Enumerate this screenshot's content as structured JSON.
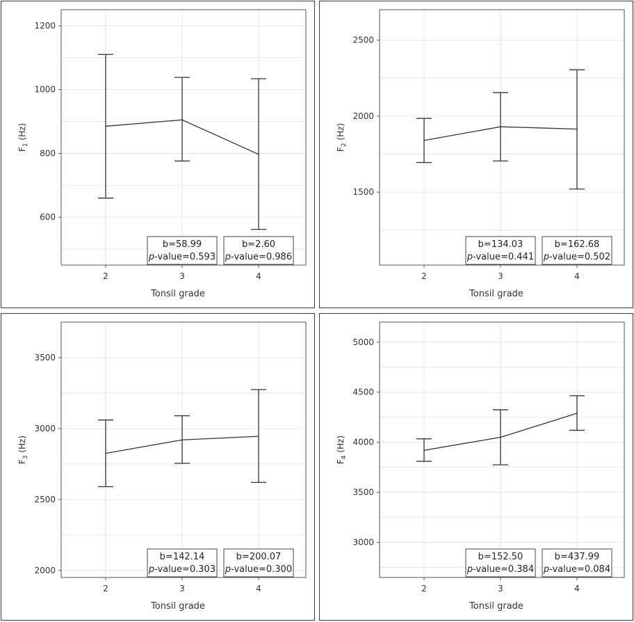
{
  "chart_data": [
    {
      "type": "line",
      "title": "",
      "ylabel_main": "F",
      "ylabel_sub": "1",
      "ylabel_unit": " (Hz)",
      "xlabel": "Tonsil grade",
      "categories": [
        "2",
        "3",
        "4"
      ],
      "series": [
        {
          "name": "F1",
          "values": [
            885,
            905,
            797
          ]
        }
      ],
      "error_low": [
        660,
        776,
        562
      ],
      "error_high": [
        1110,
        1038,
        1034
      ],
      "ylim": [
        450,
        1250
      ],
      "yticks": [
        600,
        800,
        1000,
        1200
      ],
      "annotations": [
        {
          "category": "3",
          "b": "b=58.99",
          "p_label": "p",
          "p_value": "-value=0.593"
        },
        {
          "category": "4",
          "b": "b=2.60",
          "p_label": "p",
          "p_value": "-value=0.986"
        }
      ]
    },
    {
      "type": "line",
      "title": "",
      "ylabel_main": "F",
      "ylabel_sub": "2",
      "ylabel_unit": " (Hz)",
      "xlabel": "Tonsil grade",
      "categories": [
        "2",
        "3",
        "4"
      ],
      "series": [
        {
          "name": "F2",
          "values": [
            1840,
            1930,
            1915
          ]
        }
      ],
      "error_low": [
        1695,
        1705,
        1520
      ],
      "error_high": [
        1985,
        2155,
        2305
      ],
      "ylim": [
        1020,
        2700
      ],
      "yticks": [
        1500,
        2000,
        2500
      ],
      "annotations": [
        {
          "category": "3",
          "b": "b=134.03",
          "p_label": "p",
          "p_value": "-value=0.441"
        },
        {
          "category": "4",
          "b": "b=162.68",
          "p_label": "p",
          "p_value": "-value=0.502"
        }
      ]
    },
    {
      "type": "line",
      "title": "",
      "ylabel_main": "F",
      "ylabel_sub": "3",
      "ylabel_unit": " (Hz)",
      "xlabel": "Tonsil grade",
      "categories": [
        "2",
        "3",
        "4"
      ],
      "series": [
        {
          "name": "F3",
          "values": [
            2825,
            2920,
            2945
          ]
        }
      ],
      "error_low": [
        2590,
        2755,
        2620
      ],
      "error_high": [
        3060,
        3090,
        3275
      ],
      "ylim": [
        1950,
        3750
      ],
      "yticks": [
        2000,
        2500,
        3000,
        3500
      ],
      "annotations": [
        {
          "category": "3",
          "b": "b=142.14",
          "p_label": "p",
          "p_value": "-value=0.303"
        },
        {
          "category": "4",
          "b": "b=200.07",
          "p_label": "p",
          "p_value": "-value=0.300"
        }
      ]
    },
    {
      "type": "line",
      "title": "",
      "ylabel_main": "F",
      "ylabel_sub": "4",
      "ylabel_unit": " (Hz)",
      "xlabel": "Tonsil grade",
      "categories": [
        "2",
        "3",
        "4"
      ],
      "series": [
        {
          "name": "F4",
          "values": [
            3920,
            4050,
            4290
          ]
        }
      ],
      "error_low": [
        3810,
        3775,
        4120
      ],
      "error_high": [
        4035,
        4325,
        4465
      ],
      "ylim": [
        2650,
        5200
      ],
      "yticks": [
        3000,
        3500,
        4000,
        4500,
        5000
      ],
      "annotations": [
        {
          "category": "3",
          "b": "b=152.50",
          "p_label": "p",
          "p_value": "-value=0.384"
        },
        {
          "category": "4",
          "b": "b=437.99",
          "p_label": "p",
          "p_value": "-value=0.084"
        }
      ]
    }
  ]
}
